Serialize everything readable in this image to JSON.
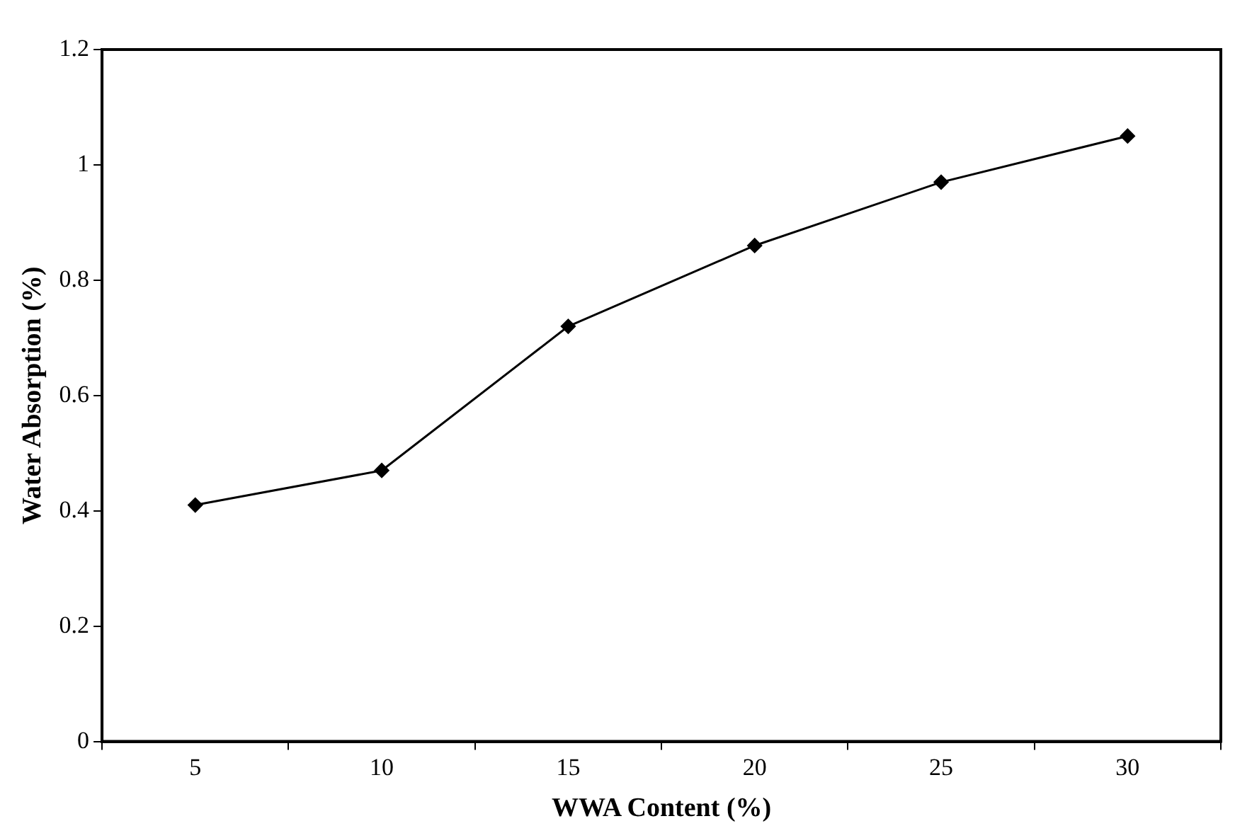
{
  "chart_data": {
    "type": "line",
    "xlabel": "WWA Content (%)",
    "ylabel": "Water Absorption (%)",
    "categories": [
      "5",
      "10",
      "15",
      "20",
      "25",
      "30"
    ],
    "series": [
      {
        "color": "#000000",
        "values": [
          0.41,
          0.47,
          0.72,
          0.86,
          0.97,
          1.05
        ]
      }
    ],
    "ylim": [
      0,
      1.2
    ],
    "yticks": [
      0,
      0.2,
      0.4,
      0.6,
      0.8,
      1,
      1.2
    ],
    "grid": false,
    "legend": false,
    "marker": "diamond",
    "line_style": "solid"
  }
}
